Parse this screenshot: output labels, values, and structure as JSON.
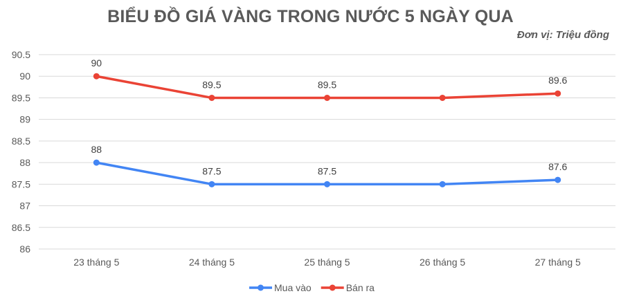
{
  "chart_data": {
    "type": "line",
    "title": "BIỂU ĐỒ GIÁ VÀNG TRONG NƯỚC 5 NGÀY QUA",
    "subtitle": "Đơn vị: Triệu đồng",
    "categories": [
      "23 tháng 5",
      "24 tháng 5",
      "25 tháng 5",
      "26 tháng 5",
      "27 tháng 5"
    ],
    "ylim": [
      86,
      90.5
    ],
    "yticks": [
      86,
      86.5,
      87,
      87.5,
      88,
      88.5,
      89,
      89.5,
      90,
      90.5
    ],
    "grid": true,
    "legend_position": "bottom",
    "series": [
      {
        "name": "Mua vào",
        "color": "#4285f4",
        "values": [
          88,
          87.5,
          87.5,
          87.5,
          87.6
        ],
        "data_labels": [
          "88",
          "87.5",
          "87.5",
          null,
          "87.6"
        ]
      },
      {
        "name": "Bán ra",
        "color": "#ea4335",
        "values": [
          90,
          89.5,
          89.5,
          89.5,
          89.6
        ],
        "data_labels": [
          "90",
          "89.5",
          "89.5",
          null,
          "89.6"
        ]
      }
    ]
  }
}
